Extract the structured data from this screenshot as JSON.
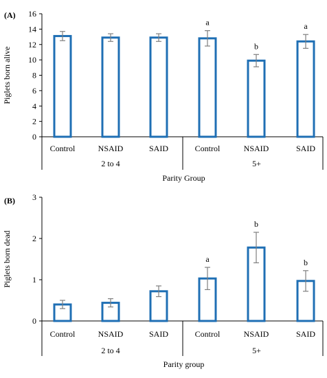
{
  "chart_data": [
    {
      "type": "bar",
      "panel_label": "(A)",
      "ylabel": "Piglets born alive",
      "xlabel": "Parity Group",
      "ylim": [
        0,
        16
      ],
      "yticks": [
        0,
        2,
        4,
        6,
        8,
        10,
        12,
        14,
        16
      ],
      "categories": [
        "Control",
        "NSAID",
        "SAID",
        "Control",
        "NSAID",
        "SAID"
      ],
      "groups": [
        {
          "label": "2 to 4",
          "categories": [
            0,
            1,
            2
          ]
        },
        {
          "label": "5+",
          "categories": [
            3,
            4,
            5
          ]
        }
      ],
      "values": [
        13.1,
        12.9,
        12.9,
        12.8,
        9.9,
        12.4
      ],
      "errors": [
        0.6,
        0.5,
        0.5,
        1.0,
        0.8,
        0.9
      ],
      "annotations": [
        "",
        "",
        "",
        "a",
        "b",
        "a"
      ],
      "bar_color": "#1f6fb4",
      "grid": false
    },
    {
      "type": "bar",
      "panel_label": "(B)",
      "ylabel": "Piglets born dead",
      "xlabel": "Parity group",
      "ylim": [
        0,
        3
      ],
      "yticks": [
        0,
        1,
        2,
        3
      ],
      "categories": [
        "Control",
        "NSAID",
        "SAID",
        "Control",
        "NSAID",
        "SAID"
      ],
      "groups": [
        {
          "label": "2 to 4",
          "categories": [
            0,
            1,
            2
          ]
        },
        {
          "label": "5+",
          "categories": [
            3,
            4,
            5
          ]
        }
      ],
      "values": [
        0.4,
        0.44,
        0.72,
        1.03,
        1.78,
        0.97
      ],
      "errors": [
        0.1,
        0.1,
        0.13,
        0.27,
        0.37,
        0.25
      ],
      "annotations": [
        "",
        "",
        "",
        "a",
        "b",
        "b"
      ],
      "bar_color": "#1f6fb4",
      "grid": false
    }
  ]
}
